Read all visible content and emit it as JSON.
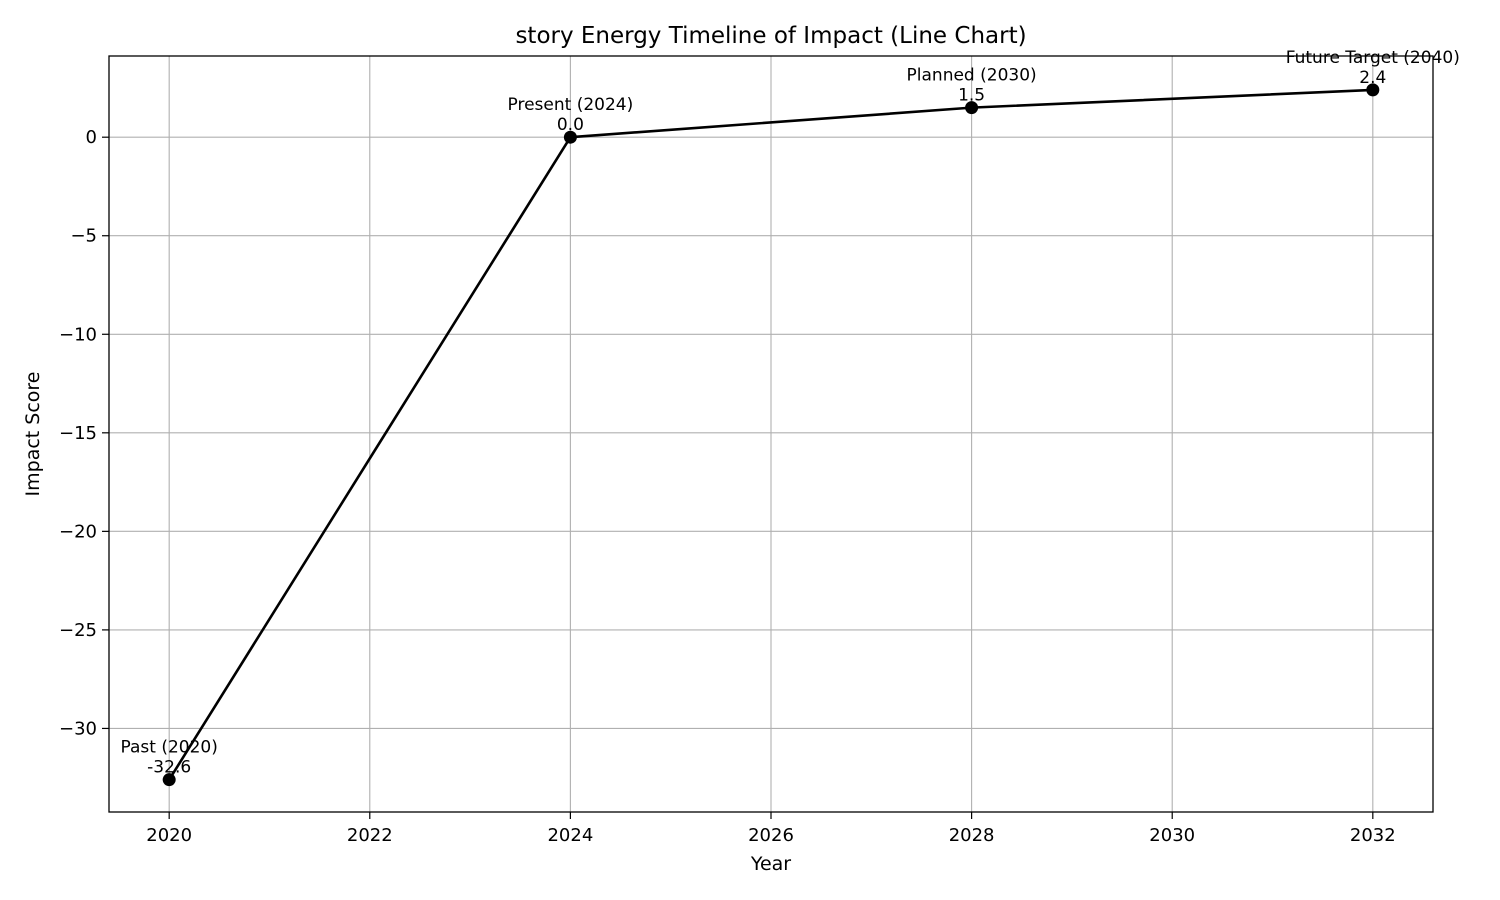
{
  "chart_data": {
    "type": "line",
    "title": "story Energy Timeline of Impact (Line Chart)",
    "xlabel": "Year",
    "ylabel": "Impact Score",
    "xlim": [
      2019.4,
      2032.6
    ],
    "ylim": [
      -34.24,
      4.12
    ],
    "xticks": [
      2020,
      2022,
      2024,
      2026,
      2028,
      2030,
      2032
    ],
    "yticks": [
      0,
      -5,
      -10,
      -15,
      -20,
      -25,
      -30
    ],
    "ytick_labels": [
      "0",
      "−5",
      "−10",
      "−15",
      "−20",
      "−25",
      "−30"
    ],
    "grid": true,
    "series": [
      {
        "color": "#000000",
        "marker": "circle",
        "points": [
          {
            "x": 2020,
            "y": -32.6,
            "label": "Past (2020)",
            "value_label": "-32.6"
          },
          {
            "x": 2024,
            "y": 0.0,
            "label": "Present (2024)",
            "value_label": "0.0"
          },
          {
            "x": 2028,
            "y": 1.5,
            "label": "Planned (2030)",
            "value_label": "1.5"
          },
          {
            "x": 2032,
            "y": 2.4,
            "label": "Future Target (2040)",
            "value_label": "2.4"
          }
        ]
      }
    ]
  }
}
